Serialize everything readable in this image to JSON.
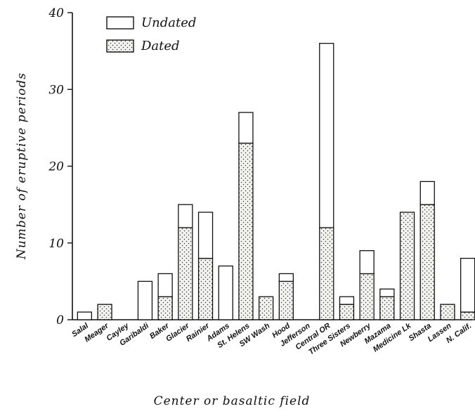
{
  "chart_data": {
    "type": "bar",
    "stacked": true,
    "xlabel": "Center or basaltic field",
    "ylabel": "Number of eruptive periods",
    "ylim": [
      0,
      40
    ],
    "yticks": [
      "0",
      "10",
      "20",
      "30",
      "40"
    ],
    "categories": [
      "Salal",
      "Meager",
      "Cayley",
      "Garibaldi",
      "Baker",
      "Glacier",
      "Rainier",
      "Adams",
      "St. Helens",
      "SW Wash",
      "Hood",
      "Jefferson",
      "Central OR",
      "Three Sisters",
      "Newberry",
      "Mazama",
      "Medicine Lk",
      "Shasta",
      "Lassen",
      "N. Calif."
    ],
    "series": [
      {
        "name": "Dated",
        "values": [
          0,
          2,
          0,
          0,
          3,
          12,
          8,
          0,
          23,
          3,
          5,
          0,
          12,
          2,
          6,
          3,
          14,
          15,
          2,
          1
        ]
      },
      {
        "name": "Undated",
        "values": [
          1,
          0,
          0,
          5,
          3,
          3,
          6,
          7,
          4,
          0,
          1,
          0,
          24,
          1,
          3,
          1,
          0,
          3,
          0,
          7
        ]
      }
    ],
    "legend": {
      "position": "top-left",
      "items": [
        "Undated",
        "Dated"
      ]
    },
    "colors": {
      "dated_fill": "#f2f2ee",
      "dated_dots": "#333333",
      "undated_fill": "#ffffff",
      "stroke": "#111111"
    },
    "grid": false
  }
}
